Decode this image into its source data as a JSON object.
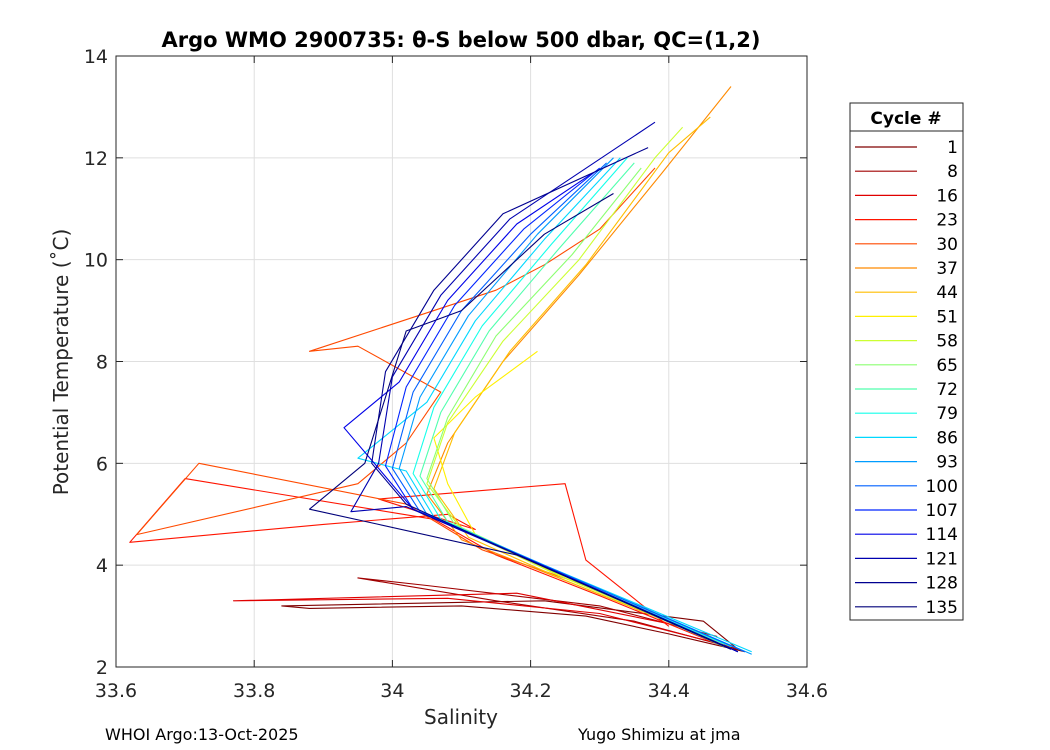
{
  "chart_data": {
    "type": "line",
    "title": "Argo WMO 2900735: θ-S below 500 dbar,  QC=(1,2)",
    "xlabel": "Salinity",
    "ylabel": "Potential Temperature (˚C)",
    "xlim": [
      33.6,
      34.6
    ],
    "ylim": [
      2,
      14
    ],
    "xticks": [
      33.6,
      33.8,
      34,
      34.2,
      34.4,
      34.6
    ],
    "xtick_labels": [
      "33.6",
      "33.8",
      "34",
      "34.2",
      "34.4",
      "34.6"
    ],
    "yticks": [
      2,
      4,
      6,
      8,
      10,
      12,
      14
    ],
    "ytick_labels": [
      "2",
      "4",
      "6",
      "8",
      "10",
      "12",
      "14"
    ],
    "grid": true,
    "legend": {
      "title": "Cycle #",
      "placement": "outside-right",
      "entries": [
        {
          "label": "1",
          "color": "#800000"
        },
        {
          "label": "8",
          "color": "#a00000"
        },
        {
          "label": "16",
          "color": "#e00000"
        },
        {
          "label": "23",
          "color": "#ff1400"
        },
        {
          "label": "30",
          "color": "#ff4a00"
        },
        {
          "label": "37",
          "color": "#ff8a00"
        },
        {
          "label": "44",
          "color": "#ffbe00"
        },
        {
          "label": "51",
          "color": "#fff000"
        },
        {
          "label": "58",
          "color": "#ccff32"
        },
        {
          "label": "65",
          "color": "#8cff72"
        },
        {
          "label": "72",
          "color": "#50ffae"
        },
        {
          "label": "79",
          "color": "#14ffea"
        },
        {
          "label": "86",
          "color": "#00d8ff"
        },
        {
          "label": "93",
          "color": "#009cff"
        },
        {
          "label": "100",
          "color": "#0060ff"
        },
        {
          "label": "107",
          "color": "#0024ff"
        },
        {
          "label": "114",
          "color": "#0000e8"
        },
        {
          "label": "121",
          "color": "#0000b0"
        },
        {
          "label": "128",
          "color": "#000090"
        },
        {
          "label": "135",
          "color": "#00007a"
        }
      ]
    },
    "series": [
      {
        "name": "1",
        "color": "#800000",
        "points": [
          [
            34.51,
            2.3
          ],
          [
            34.4,
            2.65
          ],
          [
            34.28,
            3.0
          ],
          [
            34.1,
            3.2
          ],
          [
            33.88,
            3.15
          ],
          [
            33.84,
            3.2
          ],
          [
            34.22,
            3.3
          ],
          [
            34.45,
            2.9
          ],
          [
            34.5,
            2.35
          ]
        ]
      },
      {
        "name": "8",
        "color": "#a00000",
        "points": [
          [
            34.5,
            2.35
          ],
          [
            34.35,
            2.9
          ],
          [
            34.15,
            3.3
          ],
          [
            33.95,
            3.75
          ],
          [
            34.05,
            3.6
          ],
          [
            34.3,
            3.2
          ],
          [
            34.47,
            2.6
          ]
        ]
      },
      {
        "name": "16",
        "color": "#e00000",
        "points": [
          [
            34.49,
            2.4
          ],
          [
            34.3,
            3.05
          ],
          [
            34.08,
            3.35
          ],
          [
            33.77,
            3.3
          ],
          [
            34.18,
            3.45
          ],
          [
            34.4,
            2.85
          ]
        ]
      },
      {
        "name": "23",
        "color": "#ff1400",
        "points": [
          [
            34.48,
            2.4
          ],
          [
            34.3,
            3.4
          ],
          [
            34.15,
            4.2
          ],
          [
            34.06,
            4.9
          ],
          [
            33.7,
            5.7
          ],
          [
            33.62,
            4.45
          ],
          [
            33.9,
            4.8
          ],
          [
            34.08,
            5.0
          ],
          [
            34.12,
            4.7
          ],
          [
            33.98,
            5.3
          ],
          [
            34.25,
            5.6
          ],
          [
            34.28,
            4.1
          ],
          [
            34.4,
            2.8
          ]
        ]
      },
      {
        "name": "30",
        "color": "#ff4a00",
        "points": [
          [
            34.47,
            2.5
          ],
          [
            34.28,
            3.6
          ],
          [
            34.13,
            4.3
          ],
          [
            34.02,
            5.2
          ],
          [
            33.72,
            6.0
          ],
          [
            33.63,
            4.6
          ],
          [
            33.95,
            5.6
          ],
          [
            34.02,
            6.4
          ],
          [
            34.07,
            7.4
          ],
          [
            33.95,
            8.3
          ],
          [
            33.88,
            8.2
          ],
          [
            34.15,
            9.4
          ],
          [
            34.22,
            9.9
          ],
          [
            34.3,
            10.6
          ],
          [
            34.38,
            11.8
          ]
        ]
      },
      {
        "name": "37",
        "color": "#ff8a00",
        "points": [
          [
            34.47,
            2.5
          ],
          [
            34.25,
            3.7
          ],
          [
            34.1,
            4.5
          ],
          [
            34.05,
            5.4
          ],
          [
            34.08,
            6.4
          ],
          [
            34.16,
            8.0
          ],
          [
            34.27,
            9.7
          ],
          [
            34.39,
            11.7
          ],
          [
            34.49,
            13.4
          ]
        ]
      },
      {
        "name": "44",
        "color": "#ffbe00",
        "points": [
          [
            34.47,
            2.5
          ],
          [
            34.25,
            3.7
          ],
          [
            34.11,
            4.55
          ],
          [
            34.06,
            5.5
          ],
          [
            34.09,
            6.6
          ],
          [
            34.17,
            8.2
          ],
          [
            34.28,
            9.9
          ],
          [
            34.4,
            12.1
          ],
          [
            34.46,
            12.8
          ]
        ]
      },
      {
        "name": "51",
        "color": "#fff000",
        "points": [
          [
            34.46,
            2.55
          ],
          [
            34.25,
            3.75
          ],
          [
            34.12,
            4.6
          ],
          [
            34.08,
            5.6
          ],
          [
            34.06,
            6.5
          ],
          [
            34.12,
            7.3
          ],
          [
            34.21,
            8.2
          ]
        ]
      },
      {
        "name": "58",
        "color": "#ccff32",
        "points": [
          [
            34.47,
            2.5
          ],
          [
            34.24,
            3.8
          ],
          [
            34.1,
            4.7
          ],
          [
            34.05,
            5.6
          ],
          [
            34.08,
            6.8
          ],
          [
            34.16,
            8.4
          ],
          [
            34.27,
            10.0
          ],
          [
            34.38,
            12.0
          ],
          [
            34.42,
            12.6
          ]
        ]
      },
      {
        "name": "65",
        "color": "#8cff72",
        "points": [
          [
            34.48,
            2.45
          ],
          [
            34.24,
            3.85
          ],
          [
            34.09,
            4.8
          ],
          [
            34.05,
            5.7
          ],
          [
            34.08,
            6.9
          ],
          [
            34.15,
            8.5
          ],
          [
            34.26,
            10.1
          ],
          [
            34.36,
            11.8
          ]
        ]
      },
      {
        "name": "72",
        "color": "#50ffae",
        "points": [
          [
            34.48,
            2.4
          ],
          [
            34.23,
            3.9
          ],
          [
            34.08,
            4.85
          ],
          [
            34.04,
            5.75
          ],
          [
            34.07,
            7.0
          ],
          [
            34.14,
            8.6
          ],
          [
            34.24,
            10.2
          ],
          [
            34.35,
            11.9
          ]
        ]
      },
      {
        "name": "79",
        "color": "#14ffea",
        "points": [
          [
            34.49,
            2.4
          ],
          [
            34.23,
            3.9
          ],
          [
            34.07,
            4.9
          ],
          [
            34.03,
            5.8
          ],
          [
            34.06,
            7.1
          ],
          [
            34.13,
            8.7
          ],
          [
            34.23,
            10.3
          ],
          [
            34.34,
            12.0
          ]
        ]
      },
      {
        "name": "86",
        "color": "#00d8ff",
        "points": [
          [
            34.52,
            2.3
          ],
          [
            34.22,
            4.0
          ],
          [
            34.06,
            4.95
          ],
          [
            34.02,
            5.85
          ],
          [
            33.95,
            6.1
          ],
          [
            34.05,
            7.2
          ],
          [
            34.12,
            8.8
          ],
          [
            34.22,
            10.4
          ],
          [
            34.33,
            12.0
          ]
        ]
      },
      {
        "name": "93",
        "color": "#009cff",
        "points": [
          [
            34.52,
            2.25
          ],
          [
            34.22,
            4.0
          ],
          [
            34.05,
            5.0
          ],
          [
            34.01,
            5.9
          ],
          [
            34.04,
            7.3
          ],
          [
            34.11,
            8.9
          ],
          [
            34.21,
            10.5
          ],
          [
            34.32,
            12.0
          ]
        ]
      },
      {
        "name": "100",
        "color": "#0060ff",
        "points": [
          [
            34.51,
            2.3
          ],
          [
            34.21,
            4.05
          ],
          [
            34.04,
            5.05
          ],
          [
            34.0,
            5.9
          ],
          [
            34.03,
            7.4
          ],
          [
            34.1,
            9.0
          ],
          [
            34.2,
            10.5
          ],
          [
            34.31,
            11.9
          ]
        ]
      },
      {
        "name": "107",
        "color": "#0024ff",
        "points": [
          [
            34.5,
            2.3
          ],
          [
            34.2,
            4.1
          ],
          [
            34.03,
            5.1
          ],
          [
            33.99,
            5.95
          ],
          [
            34.02,
            7.5
          ],
          [
            34.09,
            9.1
          ],
          [
            34.19,
            10.6
          ],
          [
            34.3,
            11.8
          ]
        ]
      },
      {
        "name": "114",
        "color": "#0000e8",
        "points": [
          [
            34.5,
            2.3
          ],
          [
            34.2,
            4.1
          ],
          [
            34.03,
            5.1
          ],
          [
            33.98,
            5.9
          ],
          [
            33.93,
            6.7
          ],
          [
            34.01,
            7.6
          ],
          [
            34.08,
            9.2
          ],
          [
            34.18,
            10.7
          ],
          [
            34.29,
            11.7
          ]
        ]
      },
      {
        "name": "121",
        "color": "#0000b0",
        "points": [
          [
            34.5,
            2.3
          ],
          [
            34.19,
            4.15
          ],
          [
            34.02,
            5.15
          ],
          [
            33.94,
            5.05
          ],
          [
            33.98,
            6.0
          ],
          [
            34.0,
            7.7
          ],
          [
            34.07,
            9.3
          ],
          [
            34.17,
            10.8
          ],
          [
            34.38,
            12.7
          ]
        ]
      },
      {
        "name": "128",
        "color": "#000090",
        "points": [
          [
            34.49,
            2.35
          ],
          [
            34.19,
            4.15
          ],
          [
            34.02,
            5.2
          ],
          [
            33.97,
            6.0
          ],
          [
            33.99,
            7.8
          ],
          [
            34.06,
            9.4
          ],
          [
            34.16,
            10.9
          ],
          [
            34.37,
            12.2
          ]
        ]
      },
      {
        "name": "135",
        "color": "#00007a",
        "points": [
          [
            34.49,
            2.35
          ],
          [
            34.18,
            4.2
          ],
          [
            33.98,
            4.8
          ],
          [
            33.88,
            5.1
          ],
          [
            33.96,
            6.0
          ],
          [
            34.02,
            8.6
          ],
          [
            34.1,
            9.0
          ],
          [
            34.22,
            10.5
          ],
          [
            34.32,
            11.3
          ]
        ]
      }
    ]
  },
  "footer": {
    "left": "WHOI Argo:13-Oct-2025",
    "right": "Yugo Shimizu at jma"
  }
}
